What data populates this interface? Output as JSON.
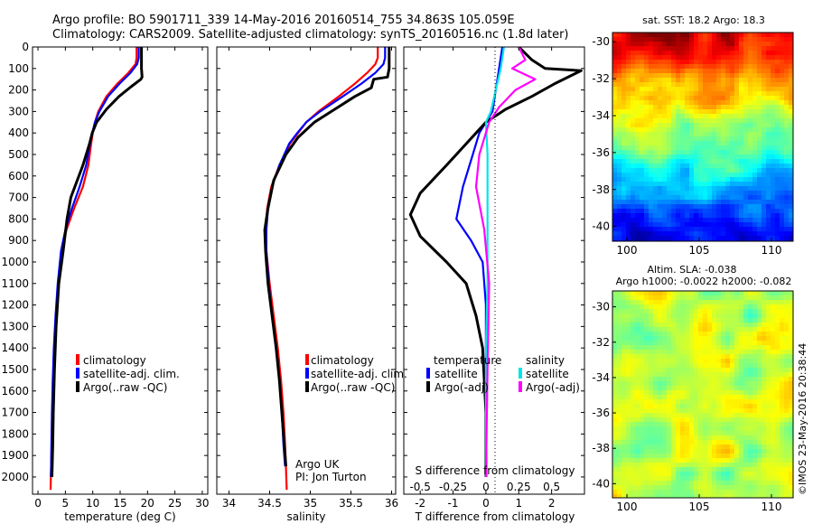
{
  "figure": {
    "title_line1": "Argo profile: BO 5901711_339 14-May-2016 20160514_755 34.863S 105.059E",
    "title_line2": "Climatology: CARS2009. Satellite-adjusted climatology: synTS_20160516.nc (1.8d later)",
    "watermark": "©IMOS 23-May-2016 20:38:44"
  },
  "colors": {
    "climatology": "#ff0000",
    "satellite": "#0000ff",
    "argo": "#000000",
    "sal_satellite": "#00e5e5",
    "sal_argo": "#ff00ff"
  },
  "chart_data": [
    {
      "type": "line",
      "id": "temperature",
      "xlabel": "temperature (deg C)",
      "xlim": [
        -1,
        31
      ],
      "ylim": [
        0,
        2080
      ],
      "y_reversed": true,
      "xticks": [
        0,
        5,
        10,
        15,
        20,
        25,
        30
      ],
      "yticks": [
        0,
        100,
        200,
        300,
        400,
        500,
        600,
        700,
        800,
        900,
        1000,
        1100,
        1200,
        1300,
        1400,
        1500,
        1600,
        1700,
        1800,
        1900,
        2000
      ],
      "legend": [
        "climatology",
        "satellite-adj. clim.",
        "Argo(..raw -QC)"
      ],
      "series": [
        {
          "name": "climatology",
          "color": "#ff0000",
          "width": 2.2,
          "x": [
            18.0,
            18.0,
            17.8,
            16.5,
            14.5,
            12.5,
            11.0,
            10.4,
            10.0,
            9.7,
            9.2,
            8.2,
            6.6,
            5.2,
            4.3,
            3.7,
            3.3,
            3.0,
            2.8,
            2.6,
            2.5,
            2.4,
            2.35,
            2.3
          ],
          "y": [
            0,
            50,
            80,
            120,
            170,
            230,
            300,
            350,
            400,
            450,
            550,
            650,
            750,
            850,
            950,
            1100,
            1250,
            1400,
            1550,
            1700,
            1850,
            1950,
            2000,
            2060
          ]
        },
        {
          "name": "satellite-adj. clim.",
          "color": "#0000ff",
          "width": 2.2,
          "x": [
            18.4,
            18.4,
            18.1,
            16.9,
            14.9,
            12.8,
            11.2,
            10.4,
            9.9,
            9.5,
            8.8,
            7.6,
            6.2,
            5.0,
            4.2,
            3.6,
            3.2,
            2.9,
            2.7,
            2.55,
            2.45,
            2.4,
            2.35
          ],
          "y": [
            0,
            50,
            80,
            120,
            170,
            230,
            300,
            350,
            400,
            450,
            550,
            650,
            750,
            850,
            950,
            1100,
            1250,
            1400,
            1550,
            1700,
            1850,
            1950,
            2000
          ]
        },
        {
          "name": "Argo(..raw -QC)",
          "color": "#000000",
          "width": 3,
          "x": [
            18.9,
            18.9,
            19.0,
            18.9,
            18.8,
            17.0,
            14.8,
            12.5,
            10.7,
            9.9,
            9.4,
            8.2,
            6.0,
            5.3,
            4.6,
            3.8,
            3.3,
            3.0,
            2.8,
            2.7,
            2.6,
            2.55
          ],
          "y": [
            0,
            100,
            140,
            145,
            150,
            185,
            230,
            290,
            350,
            400,
            450,
            550,
            700,
            800,
            950,
            1100,
            1300,
            1500,
            1700,
            1850,
            1950,
            2000
          ]
        }
      ]
    },
    {
      "type": "line",
      "id": "salinity",
      "xlabel": "salinity",
      "xlim": [
        33.85,
        36.05
      ],
      "ylim": [
        0,
        2080
      ],
      "y_reversed": true,
      "xticks": [
        34,
        34.5,
        35,
        35.5,
        36
      ],
      "legend": [
        "climatology",
        "satellite-adj. clim.",
        "Argo(..raw -QC)"
      ],
      "annotation": [
        "Argo UK",
        "PI: Jon Turton"
      ],
      "series": [
        {
          "name": "climatology",
          "color": "#ff0000",
          "width": 2.2,
          "x": [
            35.83,
            35.83,
            35.8,
            35.7,
            35.55,
            35.35,
            35.1,
            34.95,
            34.85,
            34.75,
            34.62,
            34.52,
            34.47,
            34.45,
            34.46,
            34.5,
            34.55,
            34.6,
            34.64,
            34.67,
            34.69,
            34.7,
            34.71
          ],
          "y": [
            0,
            50,
            80,
            120,
            170,
            230,
            300,
            350,
            400,
            450,
            550,
            650,
            750,
            850,
            950,
            1100,
            1250,
            1400,
            1550,
            1700,
            1850,
            1950,
            2060
          ]
        },
        {
          "name": "satellite-adj. clim.",
          "color": "#0000ff",
          "width": 2.2,
          "x": [
            35.92,
            35.92,
            35.9,
            35.8,
            35.63,
            35.4,
            35.12,
            34.95,
            34.84,
            34.74,
            34.62,
            34.53,
            34.48,
            34.46,
            34.46,
            34.49,
            34.53,
            34.58,
            34.62,
            34.65,
            34.67,
            34.69
          ],
          "y": [
            0,
            50,
            80,
            120,
            170,
            230,
            300,
            350,
            400,
            450,
            550,
            650,
            750,
            850,
            950,
            1100,
            1250,
            1400,
            1550,
            1700,
            1850,
            1950
          ]
        },
        {
          "name": "Argo(..raw -QC)",
          "color": "#000000",
          "width": 3,
          "x": [
            35.97,
            35.97,
            35.95,
            35.78,
            35.75,
            35.55,
            35.3,
            35.05,
            34.85,
            34.7,
            34.55,
            34.48,
            34.44,
            34.45,
            34.48,
            34.53,
            34.58,
            34.62,
            34.65,
            34.68,
            34.7
          ],
          "y": [
            0,
            100,
            140,
            150,
            190,
            230,
            290,
            350,
            420,
            500,
            620,
            750,
            850,
            950,
            1100,
            1250,
            1400,
            1550,
            1700,
            1850,
            1950
          ]
        }
      ]
    },
    {
      "type": "line",
      "id": "difference",
      "xlabel": "T difference from climatology",
      "top_xlabel": "S difference from climatology",
      "xlim": [
        -2.5,
        3.0
      ],
      "ylim": [
        0,
        2080
      ],
      "y_reversed": true,
      "xticks": [
        -2,
        -1,
        0,
        1,
        2
      ],
      "top_xticks": [
        -0.5,
        -0.25,
        0,
        0.25,
        0.5
      ],
      "legend_titles": [
        "temperature",
        "salinity"
      ],
      "legend": [
        "satellite",
        "Argo(-adj)",
        "satellite",
        "Argo(-adj)"
      ],
      "series": [
        {
          "name": "satellite",
          "color": "#0000ff",
          "width": 2.2,
          "x": [
            0.5,
            0.4,
            0.3,
            0.2,
            0.0,
            -0.2,
            -0.4,
            -0.7,
            -0.9,
            -0.45,
            -0.1,
            0.0,
            0.0,
            0.0,
            0.0,
            0.0
          ],
          "y": [
            0,
            100,
            200,
            300,
            350,
            400,
            500,
            650,
            800,
            900,
            1000,
            1200,
            1400,
            1600,
            1800,
            2000
          ]
        },
        {
          "name": "Argo(-adj)",
          "color": "#000000",
          "width": 3,
          "x": [
            1.0,
            1.4,
            1.8,
            2.9,
            2.1,
            1.4,
            0.6,
            0.0,
            -0.3,
            -1.2,
            -2.0,
            -2.3,
            -2.0,
            -1.2,
            -0.6,
            -0.3,
            -0.1,
            0.0,
            0.0
          ],
          "y": [
            0,
            60,
            100,
            110,
            170,
            230,
            290,
            350,
            400,
            550,
            680,
            780,
            880,
            1000,
            1100,
            1250,
            1400,
            1700,
            2000
          ]
        },
        {
          "name": "satellite",
          "color": "#00e5e5",
          "width": 2.2,
          "x": [
            0.55,
            0.45,
            0.3,
            0.15,
            0.0,
            0.05,
            0.05,
            0.05,
            0.05,
            0.0,
            0.0
          ],
          "y": [
            0,
            100,
            200,
            300,
            350,
            500,
            700,
            900,
            1100,
            1400,
            2000
          ]
        },
        {
          "name": "Argo(-adj)",
          "color": "#ff00ff",
          "width": 2.2,
          "x": [
            1.0,
            1.2,
            0.8,
            1.5,
            0.9,
            0.4,
            0.1,
            -0.2,
            -0.3,
            -0.05,
            0.1,
            0.05,
            0.0
          ],
          "y": [
            0,
            60,
            100,
            150,
            200,
            280,
            350,
            500,
            650,
            850,
            1100,
            1500,
            2000
          ]
        }
      ]
    },
    {
      "type": "heatmap",
      "id": "sst_map",
      "title": "sat. SST: 18.2 Argo: 18.3",
      "xlim": [
        99,
        111.5
      ],
      "ylim": [
        -40.8,
        -29.5
      ],
      "xticks": [
        100,
        105,
        110
      ],
      "yticks": [
        -30,
        -32,
        -34,
        -36,
        -38,
        -40
      ]
    },
    {
      "type": "heatmap",
      "id": "sla_map",
      "title_line1": "Altim. SLA: -0.038",
      "title_line2": "Argo h1000: -0.0022 h2000: -0.082",
      "xlim": [
        99,
        111.5
      ],
      "ylim": [
        -40.8,
        -29.1
      ],
      "xticks": [
        100,
        105,
        110
      ],
      "yticks": [
        -30,
        -32,
        -34,
        -36,
        -38,
        -40
      ]
    }
  ]
}
